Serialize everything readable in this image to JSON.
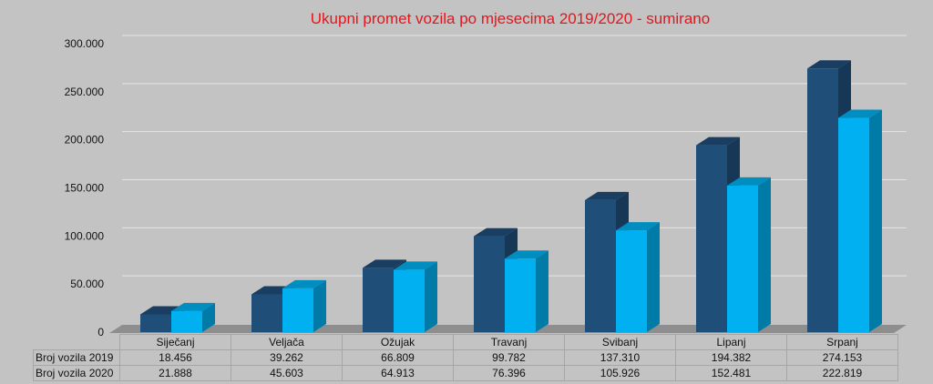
{
  "chart_data": {
    "type": "bar",
    "title": "Ukupni promet vozila po mjesecima 2019/2020 - sumirano",
    "categories": [
      "Siječanj",
      "Veljača",
      "Ožujak",
      "Travanj",
      "Svibanj",
      "Lipanj",
      "Srpanj"
    ],
    "series": [
      {
        "name": "Broj vozila 2019",
        "values": [
          18456,
          39262,
          66809,
          99782,
          137310,
          194382,
          274153
        ],
        "labels": [
          "18.456",
          "39.262",
          "66.809",
          "99.782",
          "137.310",
          "194.382",
          "274.153"
        ],
        "color": "#1f4e79"
      },
      {
        "name": "Broj vozila 2020",
        "values": [
          21888,
          45603,
          64913,
          76396,
          105926,
          152481,
          222819
        ],
        "labels": [
          "21.888",
          "45.603",
          "64.913",
          "76.396",
          "105.926",
          "152.481",
          "222.819"
        ],
        "color": "#00b0f0"
      }
    ],
    "ylim": [
      0,
      300000
    ],
    "yticks": [
      "0",
      "50.000",
      "100.000",
      "150.000",
      "200.000",
      "250.000",
      "300.000"
    ],
    "grid": true,
    "legend": "data-table"
  }
}
